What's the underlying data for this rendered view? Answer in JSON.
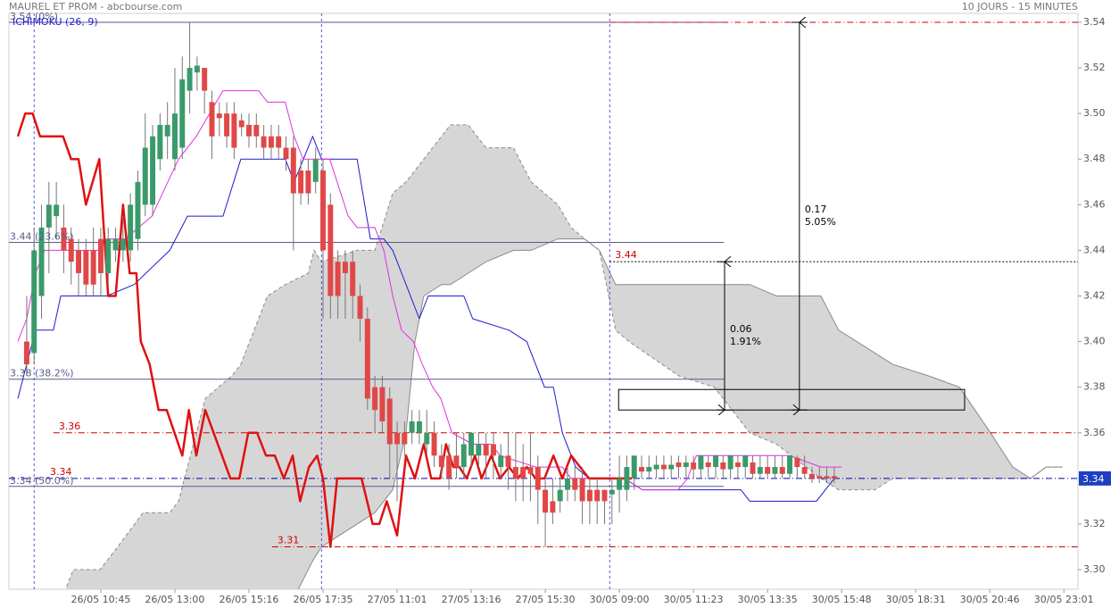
{
  "chart_data": {
    "type": "candlestick",
    "title": "MAUREL ET PROM - abcbourse.com",
    "subtitle": "10 JOURS - 15 MINUTES",
    "indicator": "ICHIMOKU (26, 9)",
    "xlim": [
      -2.4,
      141.9
    ],
    "ylim": [
      3.2914,
      3.5439
    ],
    "xticks": [
      {
        "value": 10,
        "label": "26/05 10:45"
      },
      {
        "value": 20,
        "label": "26/05 13:00"
      },
      {
        "value": 30,
        "label": "26/05 15:16"
      },
      {
        "value": 40,
        "label": "26/05 17:35"
      },
      {
        "value": 50,
        "label": "27/05 11:01"
      },
      {
        "value": 60,
        "label": "27/05 13:16"
      },
      {
        "value": 70,
        "label": "27/05 15:30"
      },
      {
        "value": 80,
        "label": "30/05 09:00"
      },
      {
        "value": 90,
        "label": "30/05 11:23"
      },
      {
        "value": 100,
        "label": "30/05 13:35"
      },
      {
        "value": 110,
        "label": "30/05 15:48"
      },
      {
        "value": 120,
        "label": "30/05 18:31"
      },
      {
        "value": 130,
        "label": "30/05 20:46"
      },
      {
        "value": 140,
        "label": "30/05 23:01"
      }
    ],
    "yticks": [
      {
        "value": 3.3,
        "label": "3.30"
      },
      3.32,
      3.34,
      3.36,
      3.38,
      {
        "value": 3.4,
        "label": "3.40"
      },
      3.42,
      3.44,
      3.46,
      3.48,
      {
        "value": 3.5,
        "label": "3.50"
      },
      3.52,
      3.54
    ],
    "up_color": "#3a9a6a",
    "down_color": "#e04848",
    "open": [
      3.4,
      3.395,
      3.42,
      3.45,
      3.455,
      3.45,
      3.445,
      3.44,
      3.44,
      3.44,
      3.445,
      3.43,
      3.44,
      3.44,
      3.44,
      3.445,
      3.46,
      3.46,
      3.48,
      3.49,
      3.48,
      3.485,
      3.51,
      3.518,
      3.52,
      3.505,
      3.5,
      3.5,
      3.5,
      3.497,
      3.495,
      3.495,
      3.49,
      3.49,
      3.49,
      3.485,
      3.485,
      3.475,
      3.475,
      3.47,
      3.475,
      3.46,
      3.435,
      3.435,
      3.435,
      3.42,
      3.41,
      3.38,
      3.38,
      3.375,
      3.36,
      3.36,
      3.36,
      3.36,
      3.355,
      3.36,
      3.35,
      3.35,
      3.35,
      3.345,
      3.35,
      3.35,
      3.355,
      3.355,
      3.345,
      3.35,
      3.345,
      3.345,
      3.345,
      3.345,
      3.335,
      3.33,
      3.33,
      3.335,
      3.34,
      3.34,
      3.335,
      3.335,
      3.335,
      3.333,
      3.335,
      3.335,
      3.34,
      3.345,
      3.343,
      3.344,
      3.346,
      3.344,
      3.347,
      3.345,
      3.347,
      3.344,
      3.347,
      3.345,
      3.347,
      3.344,
      3.347,
      3.345,
      3.347,
      3.342,
      3.345,
      3.342,
      3.345,
      3.342,
      3.349,
      3.345,
      3.342,
      3.341,
      3.341,
      3.341
    ],
    "high": [
      3.42,
      3.45,
      3.46,
      3.47,
      3.47,
      3.46,
      3.45,
      3.445,
      3.445,
      3.45,
      3.45,
      3.45,
      3.45,
      3.455,
      3.465,
      3.475,
      3.5,
      3.495,
      3.5,
      3.505,
      3.52,
      3.525,
      3.54,
      3.525,
      3.52,
      3.51,
      3.505,
      3.505,
      3.505,
      3.5,
      3.5,
      3.5,
      3.495,
      3.495,
      3.495,
      3.49,
      3.49,
      3.48,
      3.48,
      3.485,
      3.48,
      3.465,
      3.44,
      3.44,
      3.44,
      3.425,
      3.415,
      3.385,
      3.385,
      3.38,
      3.365,
      3.365,
      3.37,
      3.37,
      3.37,
      3.365,
      3.355,
      3.355,
      3.36,
      3.36,
      3.36,
      3.36,
      3.36,
      3.36,
      3.355,
      3.36,
      3.36,
      3.355,
      3.36,
      3.35,
      3.34,
      3.34,
      3.34,
      3.345,
      3.345,
      3.345,
      3.34,
      3.34,
      3.335,
      3.34,
      3.35,
      3.35,
      3.35,
      3.35,
      3.35,
      3.35,
      3.35,
      3.35,
      3.35,
      3.35,
      3.35,
      3.35,
      3.35,
      3.35,
      3.35,
      3.35,
      3.35,
      3.35,
      3.35,
      3.35,
      3.35,
      3.35,
      3.35,
      3.35,
      3.35,
      3.35,
      3.345,
      3.345,
      3.345,
      3.345
    ],
    "low": [
      3.385,
      3.39,
      3.41,
      3.43,
      3.445,
      3.43,
      3.425,
      3.42,
      3.42,
      3.42,
      3.42,
      3.425,
      3.435,
      3.435,
      3.435,
      3.44,
      3.455,
      3.455,
      3.475,
      3.48,
      3.475,
      3.48,
      3.5,
      3.51,
      3.5,
      3.48,
      3.49,
      3.485,
      3.48,
      3.49,
      3.485,
      3.485,
      3.48,
      3.48,
      3.48,
      3.475,
      3.44,
      3.46,
      3.46,
      3.465,
      3.41,
      3.41,
      3.41,
      3.41,
      3.41,
      3.4,
      3.37,
      3.36,
      3.36,
      3.34,
      3.33,
      3.35,
      3.355,
      3.355,
      3.35,
      3.345,
      3.34,
      3.335,
      3.34,
      3.34,
      3.345,
      3.345,
      3.34,
      3.34,
      3.34,
      3.335,
      3.33,
      3.33,
      3.33,
      3.32,
      3.31,
      3.32,
      3.325,
      3.33,
      3.33,
      3.32,
      3.32,
      3.32,
      3.32,
      3.32,
      3.325,
      3.33,
      3.335,
      3.34,
      3.34,
      3.34,
      3.34,
      3.34,
      3.34,
      3.34,
      3.34,
      3.34,
      3.34,
      3.34,
      3.34,
      3.34,
      3.34,
      3.34,
      3.34,
      3.34,
      3.34,
      3.34,
      3.34,
      3.34,
      3.34,
      3.34,
      3.338,
      3.338,
      3.338,
      3.338
    ],
    "close": [
      3.39,
      3.44,
      3.45,
      3.46,
      3.46,
      3.44,
      3.435,
      3.43,
      3.425,
      3.425,
      3.43,
      3.445,
      3.445,
      3.445,
      3.46,
      3.47,
      3.485,
      3.49,
      3.495,
      3.495,
      3.5,
      3.515,
      3.52,
      3.521,
      3.51,
      3.49,
      3.498,
      3.49,
      3.485,
      3.494,
      3.49,
      3.49,
      3.485,
      3.485,
      3.485,
      3.48,
      3.465,
      3.465,
      3.465,
      3.48,
      3.44,
      3.42,
      3.42,
      3.43,
      3.42,
      3.41,
      3.375,
      3.37,
      3.365,
      3.355,
      3.355,
      3.355,
      3.365,
      3.365,
      3.36,
      3.35,
      3.345,
      3.34,
      3.345,
      3.355,
      3.36,
      3.355,
      3.35,
      3.35,
      3.35,
      3.345,
      3.34,
      3.34,
      3.342,
      3.335,
      3.325,
      3.325,
      3.335,
      3.34,
      3.335,
      3.33,
      3.33,
      3.33,
      3.33,
      3.335,
      3.34,
      3.345,
      3.35,
      3.343,
      3.345,
      3.346,
      3.344,
      3.346,
      3.345,
      3.347,
      3.344,
      3.35,
      3.345,
      3.35,
      3.344,
      3.35,
      3.345,
      3.35,
      3.342,
      3.345,
      3.342,
      3.345,
      3.342,
      3.35,
      3.345,
      3.342,
      3.34,
      3.34,
      3.34,
      3.34
    ],
    "lines": [
      {
        "color": "#1a1acc",
        "width": 1,
        "x": [
          -1.2,
          0,
          1.2,
          3.6,
          4.6,
          10.8,
          14.5,
          19.3,
          21.7,
          26.5,
          28.9,
          34.9,
          36.1,
          38.6,
          39.8,
          44.6,
          46.4,
          48.2,
          49.4,
          51.8,
          53,
          54.2,
          59,
          60.2,
          65.1,
          67.5,
          69.9,
          71.1,
          72.3,
          74.1,
          75.9,
          80.7,
          83.1,
          96.4,
          97.6,
          106.6,
          109
        ],
        "values": [
          3.375,
          3.39,
          3.405,
          3.405,
          3.42,
          3.42,
          3.425,
          3.44,
          3.455,
          3.455,
          3.48,
          3.48,
          3.47,
          3.49,
          3.48,
          3.48,
          3.445,
          3.445,
          3.44,
          3.42,
          3.41,
          3.42,
          3.42,
          3.41,
          3.405,
          3.4,
          3.38,
          3.38,
          3.36,
          3.345,
          3.34,
          3.34,
          3.335,
          3.335,
          3.33,
          3.33,
          3.34
        ]
      },
      {
        "color": "#e030e0",
        "width": 1,
        "x": [
          -1.2,
          0,
          1.2,
          2.4,
          9.6,
          10.8,
          13.3,
          16.9,
          20.5,
          22.9,
          26.5,
          31.3,
          32.5,
          34.9,
          36.1,
          37.3,
          40.9,
          43.4,
          44.6,
          47,
          48.2,
          49.4,
          50.6,
          52.2,
          53.4,
          54.8,
          55.9,
          57.4,
          60.2,
          62.7,
          63.9,
          68.7,
          72.3,
          73.5,
          80.7,
          83.1,
          87.9,
          89.2,
          90.4,
          93,
          103,
          107.2,
          110
        ],
        "values": [
          3.4,
          3.41,
          3.43,
          3.44,
          3.44,
          3.445,
          3.445,
          3.455,
          3.48,
          3.49,
          3.51,
          3.51,
          3.505,
          3.505,
          3.49,
          3.48,
          3.48,
          3.455,
          3.45,
          3.45,
          3.44,
          3.42,
          3.405,
          3.4,
          3.39,
          3.38,
          3.375,
          3.36,
          3.355,
          3.355,
          3.35,
          3.345,
          3.345,
          3.34,
          3.34,
          3.335,
          3.335,
          3.34,
          3.35,
          3.35,
          3.35,
          3.345,
          3.345
        ]
      },
      {
        "color": "#e01010",
        "width": 2.5,
        "x": [
          -1.2,
          -0.2,
          0.8,
          1.8,
          4.9,
          6.0,
          7.0,
          8.0,
          9.8,
          11.0,
          12.0,
          13.0,
          13.9,
          14.8,
          15.4,
          16.6,
          17.8,
          18.9,
          21.0,
          21.9,
          22.9,
          24.1,
          27.5,
          28.7,
          29.9,
          31.1,
          32.3,
          33.5,
          34.7,
          35.9,
          36.9,
          38.1,
          39.2,
          40.0,
          41.0,
          41.9,
          45.2,
          46.7,
          47.6,
          48.6,
          50.0,
          51.2,
          52.4,
          53.6,
          54.6,
          55.8,
          56.6,
          57.6,
          58.4,
          59.4,
          60.5,
          61.4,
          62.7,
          63.9,
          65.1,
          66.3,
          67.5,
          68.7,
          69.9,
          71.1,
          72.3,
          73.5,
          74.7,
          75.9,
          81.7
        ],
        "values": [
          3.49,
          3.5,
          3.5,
          3.49,
          3.49,
          3.48,
          3.48,
          3.46,
          3.48,
          3.42,
          3.42,
          3.46,
          3.43,
          3.43,
          3.4,
          3.39,
          3.37,
          3.37,
          3.35,
          3.37,
          3.35,
          3.37,
          3.34,
          3.34,
          3.36,
          3.36,
          3.35,
          3.35,
          3.34,
          3.35,
          3.33,
          3.345,
          3.35,
          3.34,
          3.31,
          3.34,
          3.34,
          3.32,
          3.32,
          3.33,
          3.315,
          3.35,
          3.34,
          3.355,
          3.34,
          3.34,
          3.355,
          3.345,
          3.345,
          3.34,
          3.35,
          3.34,
          3.35,
          3.34,
          3.345,
          3.34,
          3.345,
          3.34,
          3.34,
          3.35,
          3.34,
          3.35,
          3.345,
          3.34,
          3.34
        ]
      }
    ],
    "cloud": {
      "color": "#d6d6d6",
      "edge": "#8a8a8a",
      "x": [
        5.1,
        6.3,
        9.9,
        12.3,
        15.7,
        19.3,
        20.5,
        24.1,
        27.7,
        28.9,
        30.1,
        32.5,
        34.9,
        38.0,
        38.8,
        39.8,
        44.6,
        47.0,
        49.4,
        51.2,
        52.4,
        53.6,
        56.0,
        57.2,
        59.6,
        62.0,
        65.7,
        68.1,
        71.7,
        73.5,
        75.3,
        77.3,
        79.5,
        81.3,
        88.0,
        92.8,
        97.6,
        101.2,
        107.2,
        109.6,
        114.5,
        116.9,
        121.7,
        125.9,
        130.1,
        133.1,
        135.5,
        137.6,
        139.8
      ],
      "span_a": [
        3.29,
        3.3,
        3.3,
        3.31,
        3.325,
        3.325,
        3.33,
        3.375,
        3.385,
        3.39,
        3.4,
        3.42,
        3.425,
        3.43,
        3.44,
        3.435,
        3.44,
        3.44,
        3.465,
        3.47,
        3.475,
        3.48,
        3.49,
        3.495,
        3.495,
        3.485,
        3.485,
        3.47,
        3.46,
        3.45,
        3.445,
        3.44,
        3.405,
        3.4,
        3.385,
        3.38,
        3.36,
        3.355,
        3.34,
        3.335,
        3.335,
        3.34,
        3.34,
        3.34,
        3.34,
        3.34,
        3.34,
        3.345,
        3.345
      ],
      "span_b": [
        3.29,
        3.28,
        3.28,
        3.28,
        3.28,
        3.28,
        3.28,
        3.28,
        3.28,
        3.28,
        3.28,
        3.28,
        3.28,
        3.3,
        3.305,
        3.31,
        3.32,
        3.325,
        3.335,
        3.36,
        3.4,
        3.42,
        3.425,
        3.425,
        3.43,
        3.435,
        3.44,
        3.44,
        3.445,
        3.445,
        3.445,
        3.44,
        3.425,
        3.425,
        3.425,
        3.425,
        3.425,
        3.42,
        3.42,
        3.405,
        3.395,
        3.39,
        3.385,
        3.38,
        3.36,
        3.345,
        3.34,
        3.345,
        3.345
      ]
    },
    "sessions": [
      1,
      39.8,
      78.7
    ],
    "fib": [
      {
        "value": 3.54,
        "label": "3.54 (0%)"
      },
      {
        "value": 3.4435,
        "label": "3.44 (23.6%)"
      },
      {
        "value": 3.3835,
        "label": "3.38 (38.2%)"
      },
      {
        "value": 3.3365,
        "label": "3.34 (50.0%)"
      }
    ],
    "fib_end": 94.1,
    "levels": [
      {
        "value": 3.54,
        "start": 78.7,
        "color": "#cc0000",
        "style": "dashdot"
      },
      {
        "value": 3.36,
        "label": "3.36",
        "start": 3.6,
        "color": "#cc0000",
        "style": "dashdot"
      },
      {
        "value": 3.34,
        "label": "3.34",
        "start": -2.4,
        "color": "#0000aa",
        "style": "dashdot"
      },
      {
        "value": 3.31,
        "label": "3.31",
        "start": 33.1,
        "color": "#cc0000",
        "style": "dashdot"
      },
      {
        "value": 3.435,
        "label": "3.44",
        "start": 78.7,
        "color": "#000000",
        "style": "dotted"
      }
    ],
    "measurements": [
      {
        "from": 3.37,
        "to": 3.435,
        "x": 94.2,
        "diff": 0.06,
        "pct": "1.91%"
      },
      {
        "from": 3.37,
        "to": 3.54,
        "x": 104.3,
        "diff": 0.17,
        "pct": "5.05%"
      }
    ],
    "box": {
      "x": [
        79.9,
        126.6
      ],
      "y": [
        3.37,
        3.379
      ]
    },
    "last_price": 3.34,
    "last_color": "#1f3fc0"
  }
}
